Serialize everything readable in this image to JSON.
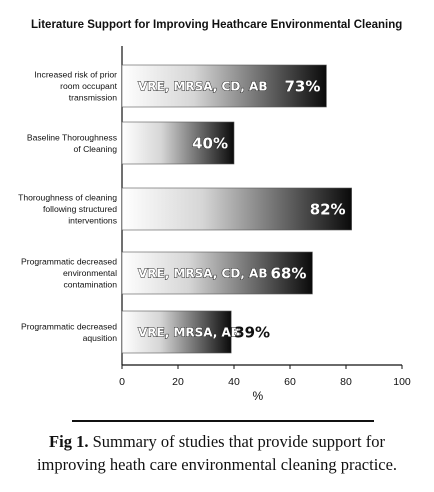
{
  "chart_data": {
    "type": "bar",
    "orientation": "horizontal",
    "title": "Literature Support for Improving Heathcare Environmental Cleaning",
    "xlabel": "%",
    "xlim": [
      0,
      100
    ],
    "xticks": [
      0,
      20,
      40,
      60,
      80,
      100
    ],
    "grid": false,
    "legend": "none",
    "bars": [
      {
        "label_lines": [
          "Increased risk of prior",
          "room occupant",
          "transmission"
        ],
        "value": 73,
        "value_label": "73%",
        "note": "VRE, MRSA, CD, AB"
      },
      {
        "label_lines": [
          "Baseline Thoroughness",
          "of Cleaning"
        ],
        "value": 40,
        "value_label": "40%",
        "note": ""
      },
      {
        "label_lines": [
          "Thoroughness of cleaning",
          "following structured",
          "interventions"
        ],
        "value": 82,
        "value_label": "82%",
        "note": ""
      },
      {
        "label_lines": [
          "Programmatic decreased",
          "environmental",
          "contamination"
        ],
        "value": 68,
        "value_label": "68%",
        "note": "VRE, MRSA, CD, AB"
      },
      {
        "label_lines": [
          "Programmatic decreased",
          "aqusition"
        ],
        "value": 39,
        "value_label": "39%",
        "note": "VRE, MRSA, AB"
      }
    ],
    "colors": {
      "gradient_start": "#ffffff",
      "gradient_end": "#0a0a0a",
      "axis": "#111111"
    }
  },
  "caption": {
    "label": "Fig 1.",
    "line1": "Summary of studies that provide support for",
    "line2": "improving heath care environmental cleaning practice."
  }
}
